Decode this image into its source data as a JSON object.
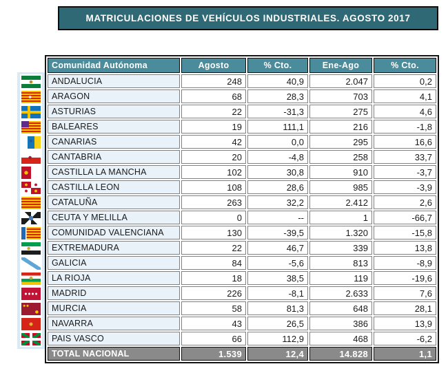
{
  "title": "MATRICULACIONES DE VEHÍCULOS INDUSTRIALES. AGOSTO 2017",
  "colors": {
    "title_bar_bg": "#2E6975",
    "header_bg": "#4A8C9C",
    "header_text": "#FFFFFF",
    "region_cell_bg": "#E9F2F9",
    "flag_strip_bg": "#D9EAF4",
    "total_row_bg": "#8A8A8A",
    "grid_border": "#7F7F7F",
    "outer_border": "#141414"
  },
  "table": {
    "columns": [
      "Comunidad Autónoma",
      "Agosto",
      "% Cto.",
      "Ene-Ago",
      "% Cto."
    ],
    "rows": [
      {
        "flag": "andalucia",
        "name": "ANDALUCIA",
        "agosto": "248",
        "pct_agosto": "40,9",
        "ene_ago": "2.047",
        "pct_ene_ago": "0,2"
      },
      {
        "flag": "aragon",
        "name": "ARAGON",
        "agosto": "68",
        "pct_agosto": "28,3",
        "ene_ago": "703",
        "pct_ene_ago": "4,1"
      },
      {
        "flag": "asturias",
        "name": "ASTURIAS",
        "agosto": "22",
        "pct_agosto": "-31,3",
        "ene_ago": "275",
        "pct_ene_ago": "4,6"
      },
      {
        "flag": "baleares",
        "name": "BALEARES",
        "agosto": "19",
        "pct_agosto": "111,1",
        "ene_ago": "216",
        "pct_ene_ago": "-1,8"
      },
      {
        "flag": "canarias",
        "name": "CANARIAS",
        "agosto": "42",
        "pct_agosto": "0,0",
        "ene_ago": "295",
        "pct_ene_ago": "16,6"
      },
      {
        "flag": "cantabria",
        "name": "CANTABRIA",
        "agosto": "20",
        "pct_agosto": "-4,8",
        "ene_ago": "258",
        "pct_ene_ago": "33,7"
      },
      {
        "flag": "castilla-la-mancha",
        "name": "CASTILLA LA MANCHA",
        "agosto": "102",
        "pct_agosto": "30,8",
        "ene_ago": "910",
        "pct_ene_ago": "-3,7"
      },
      {
        "flag": "castilla-leon",
        "name": "CASTILLA LEON",
        "agosto": "108",
        "pct_agosto": "28,6",
        "ene_ago": "985",
        "pct_ene_ago": "-3,9"
      },
      {
        "flag": "cataluna",
        "name": "CATALUÑA",
        "agosto": "263",
        "pct_agosto": "32,2",
        "ene_ago": "2.412",
        "pct_ene_ago": "2,6"
      },
      {
        "flag": "ceuta-melilla",
        "name": "CEUTA Y MELILLA",
        "agosto": "0",
        "pct_agosto": "--",
        "ene_ago": "1",
        "pct_ene_ago": "-66,7"
      },
      {
        "flag": "valenciana",
        "name": "COMUNIDAD VALENCIANA",
        "agosto": "130",
        "pct_agosto": "-39,5",
        "ene_ago": "1.320",
        "pct_ene_ago": "-15,8"
      },
      {
        "flag": "extremadura",
        "name": "EXTREMADURA",
        "agosto": "22",
        "pct_agosto": "46,7",
        "ene_ago": "339",
        "pct_ene_ago": "13,8"
      },
      {
        "flag": "galicia",
        "name": "GALICIA",
        "agosto": "84",
        "pct_agosto": "-5,6",
        "ene_ago": "813",
        "pct_ene_ago": "-8,9"
      },
      {
        "flag": "la-rioja",
        "name": "LA RIOJA",
        "agosto": "18",
        "pct_agosto": "38,5",
        "ene_ago": "119",
        "pct_ene_ago": "-19,6"
      },
      {
        "flag": "madrid",
        "name": "MADRID",
        "agosto": "226",
        "pct_agosto": "-8,1",
        "ene_ago": "2.633",
        "pct_ene_ago": "7,6"
      },
      {
        "flag": "murcia",
        "name": "MURCIA",
        "agosto": "58",
        "pct_agosto": "81,3",
        "ene_ago": "648",
        "pct_ene_ago": "28,1"
      },
      {
        "flag": "navarra",
        "name": "NAVARRA",
        "agosto": "43",
        "pct_agosto": "26,5",
        "ene_ago": "386",
        "pct_ene_ago": "13,9"
      },
      {
        "flag": "pais-vasco",
        "name": "PAIS VASCO",
        "agosto": "66",
        "pct_agosto": "112,9",
        "ene_ago": "468",
        "pct_ene_ago": "-6,2"
      }
    ],
    "total": {
      "name": "TOTAL NACIONAL",
      "agosto": "1.539",
      "pct_agosto": "12,4",
      "ene_ago": "14.828",
      "pct_ene_ago": "1,1"
    }
  }
}
